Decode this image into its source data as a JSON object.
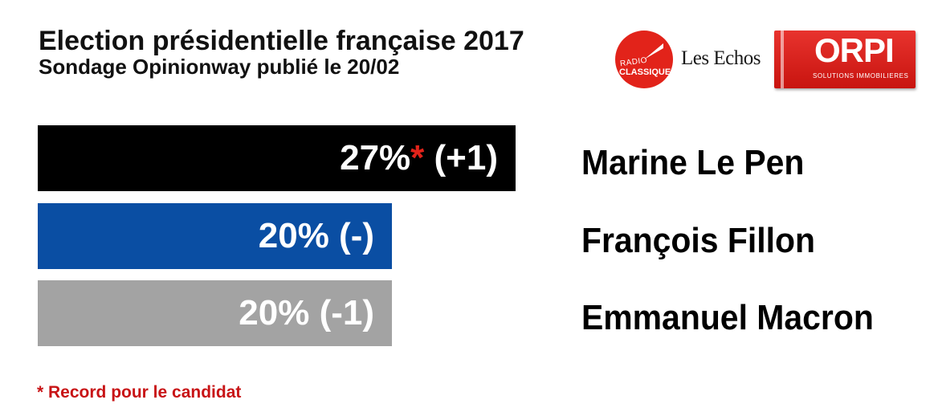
{
  "header": {
    "title": "Election présidentielle française 2017",
    "subtitle": "Sondage Opinionway publié le 20/02"
  },
  "logos": {
    "radio_classique": {
      "line1": "RADIO",
      "line2": "CLASSIQUE",
      "color": "#e2231a"
    },
    "les_echos": "Les Echos",
    "orpi": {
      "word": "ORPI",
      "tagline": "SOLUTIONS IMMOBILIERES",
      "color": "#d8231d"
    }
  },
  "chart_data": {
    "type": "bar",
    "orientation": "horizontal",
    "title": "Election présidentielle française 2017",
    "subtitle": "Sondage Opinionway publié le 20/02",
    "unit": "%",
    "categories": [
      "Marine Le Pen",
      "François Fillon",
      "Emmanuel Macron"
    ],
    "values": [
      27,
      20,
      20
    ],
    "changes": [
      "+1",
      "-",
      "-1"
    ],
    "colors": [
      "#000000",
      "#0a4ea3",
      "#a3a3a3"
    ],
    "labels": [
      {
        "value": "27%",
        "record_marker": "*",
        "change": " (+1)"
      },
      {
        "value": "20% (-)",
        "record_marker": "",
        "change": ""
      },
      {
        "value": "20% (-1)",
        "record_marker": "",
        "change": ""
      }
    ],
    "record_marker_color": "#e2231a",
    "footnote": "* Record pour le candidat",
    "footnote_color": "#c81416"
  }
}
